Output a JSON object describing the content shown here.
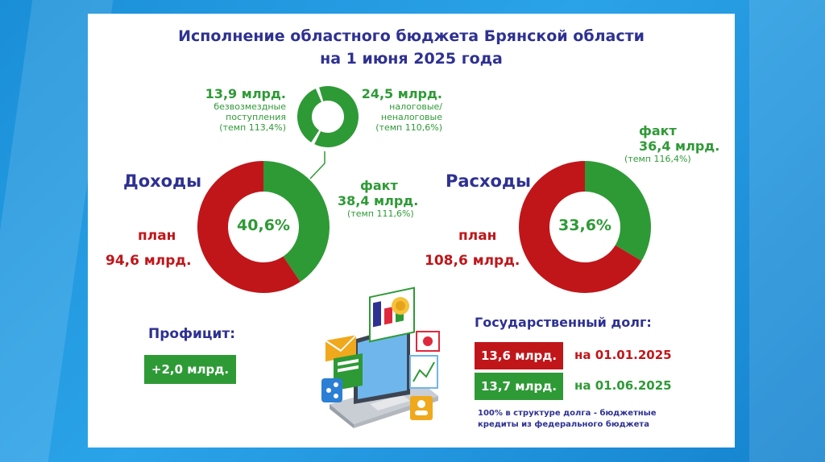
{
  "title_line1": "Исполнение областного бюджета Брянской области",
  "title_line2": "на 1 июня 2025 года",
  "colors": {
    "green": "#2e9a36",
    "red": "#c0161a",
    "navy": "#2e3192"
  },
  "income_structure": {
    "gratuitous_value": "13,9 млрд.",
    "gratuitous_label1": "безвозмездные",
    "gratuitous_label2": "поступления",
    "gratuitous_rate": "(темп 113,4%)",
    "tax_value": "24,5 млрд.",
    "tax_label1": "налоговые/",
    "tax_label2": "неналоговые",
    "tax_rate": "(темп 110,6%)"
  },
  "income": {
    "label": "Доходы",
    "plan_label": "план",
    "plan_value": "94,6 млрд.",
    "fact_label": "факт",
    "fact_value": "38,4 млрд.",
    "fact_rate": "(темп 111,6%)",
    "percent": "40,6%"
  },
  "expenses": {
    "label": "Расходы",
    "plan_label": "план",
    "plan_value": "108,6 млрд.",
    "fact_label": "факт",
    "fact_value": "36,4 млрд.",
    "fact_rate": "(темп 116,4%)",
    "percent": "33,6%"
  },
  "surplus": {
    "label": "Профицит:",
    "value": "+2,0 млрд."
  },
  "debt": {
    "label": "Государственный долг:",
    "rows": [
      {
        "value": "13,6 млрд.",
        "date": "на 01.01.2025"
      },
      {
        "value": "13,7 млрд.",
        "date": "на 01.06.2025"
      }
    ],
    "note1": "100% в структуре долга - бюджетные",
    "note2": "кредиты из федерального бюджета"
  },
  "chart_data": [
    {
      "type": "pie",
      "series": [
        {
          "values": [
            24.5,
            13.9
          ]
        }
      ],
      "categories": [
        "налоговые/неналоговые",
        "безвозмездные поступления"
      ]
    },
    {
      "type": "pie",
      "title": "Доходы",
      "categories": [
        "факт",
        "план"
      ],
      "series": [
        {
          "values": [
            40.6,
            59.4
          ]
        }
      ],
      "center_label": "40,6%"
    },
    {
      "type": "pie",
      "title": "Расходы",
      "categories": [
        "факт",
        "план"
      ],
      "series": [
        {
          "values": [
            33.6,
            66.4
          ]
        }
      ],
      "center_label": "33,6%"
    }
  ]
}
